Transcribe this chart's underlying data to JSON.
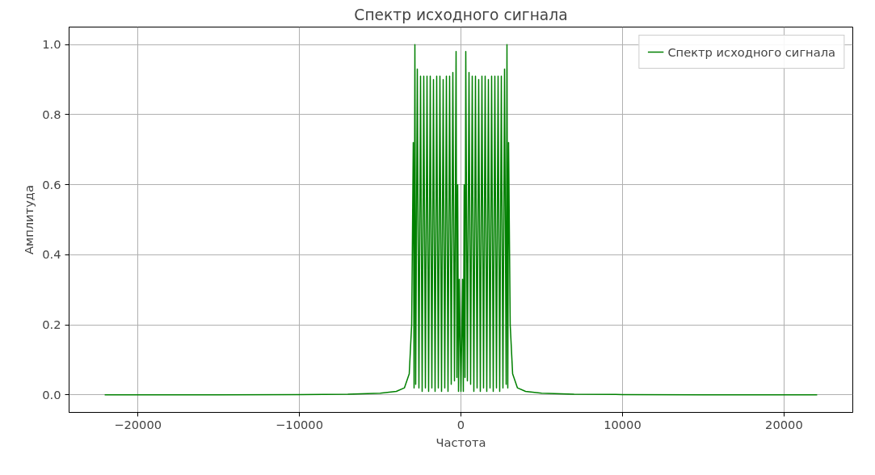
{
  "chart_data": {
    "type": "line",
    "title": "Спектр исходного сигнала",
    "xlabel": "Частота",
    "ylabel": "Амплитуда",
    "x": [
      -22050,
      -15000,
      -10000,
      -7000,
      -5000,
      -4000,
      -3500,
      -3200,
      -3050,
      -2950,
      -2900,
      -2850,
      -2800,
      -2700,
      -2600,
      -2500,
      -2400,
      -2300,
      -2200,
      -2100,
      -2000,
      -1900,
      -1800,
      -1700,
      -1600,
      -1500,
      -1400,
      -1300,
      -1200,
      -1100,
      -1000,
      -900,
      -800,
      -700,
      -600,
      -500,
      -400,
      -300,
      -250,
      -200,
      -150,
      -100,
      0,
      100,
      150,
      200,
      250,
      300,
      400,
      500,
      600,
      700,
      800,
      900,
      1000,
      1100,
      1200,
      1300,
      1400,
      1500,
      1600,
      1700,
      1800,
      1900,
      2000,
      2100,
      2200,
      2300,
      2400,
      2500,
      2600,
      2700,
      2800,
      2850,
      2900,
      2950,
      3050,
      3200,
      3500,
      4000,
      5000,
      7000,
      10000,
      15000,
      22050
    ],
    "series": [
      {
        "name": "Спектр исходного сигнала",
        "color": "#008000",
        "values": [
          0,
          0,
          0.001,
          0.002,
          0.005,
          0.01,
          0.02,
          0.06,
          0.2,
          0.72,
          0.02,
          1.0,
          0.03,
          0.93,
          0.02,
          0.91,
          0.01,
          0.91,
          0.02,
          0.91,
          0.01,
          0.91,
          0.02,
          0.9,
          0.01,
          0.91,
          0.02,
          0.91,
          0.01,
          0.9,
          0.02,
          0.91,
          0.01,
          0.91,
          0.03,
          0.92,
          0.04,
          0.98,
          0.05,
          0.6,
          0.01,
          0.33,
          0.01,
          0.33,
          0.01,
          0.6,
          0.05,
          0.98,
          0.04,
          0.92,
          0.03,
          0.91,
          0.01,
          0.91,
          0.02,
          0.9,
          0.01,
          0.91,
          0.02,
          0.91,
          0.01,
          0.9,
          0.02,
          0.91,
          0.01,
          0.91,
          0.02,
          0.91,
          0.01,
          0.91,
          0.02,
          0.93,
          0.03,
          1.0,
          0.02,
          0.72,
          0.2,
          0.06,
          0.02,
          0.01,
          0.005,
          0.002,
          0.001,
          0,
          0
        ]
      }
    ],
    "xlim": [
      -24255,
      24255
    ],
    "ylim": [
      -0.05,
      1.05
    ],
    "xticks": [
      {
        "value": -20000,
        "label": "−20000"
      },
      {
        "value": -10000,
        "label": "−10000"
      },
      0,
      10000,
      20000
    ],
    "yticks": [
      {
        "value": 0,
        "label": "0.0"
      },
      {
        "value": 0.2,
        "label": "0.2"
      },
      {
        "value": 0.4,
        "label": "0.4"
      },
      {
        "value": 0.6,
        "label": "0.6"
      },
      {
        "value": 0.8,
        "label": "0.8"
      },
      {
        "value": 1,
        "label": "1.0"
      }
    ],
    "grid": true,
    "legend": "top right",
    "line_style": "solid"
  }
}
